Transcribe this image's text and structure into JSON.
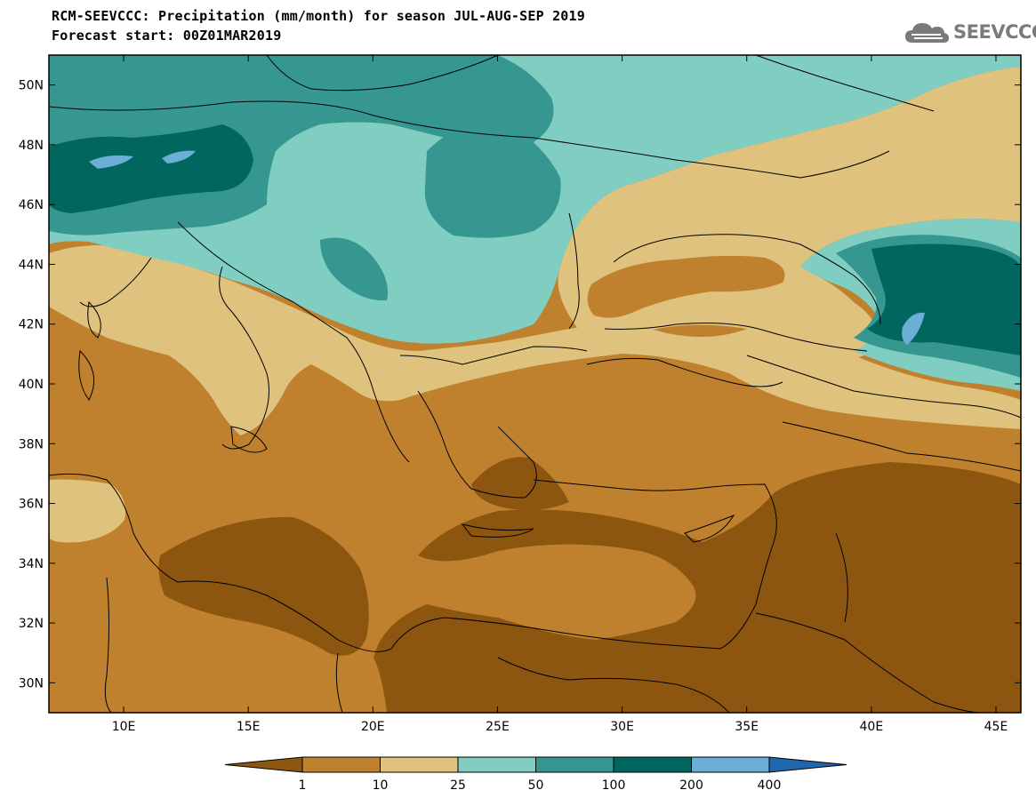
{
  "header": {
    "title_line1": "RCM-SEEVCCC: Precipitation (mm/month) for season JUL-AUG-SEP 2019",
    "title_line2": "Forecast start: 00Z01MAR2019",
    "logo_text": "SEEVCCC"
  },
  "map": {
    "projection": "lat-lon",
    "lon_range": [
      7,
      46
    ],
    "lat_range": [
      29,
      51
    ],
    "lon_ticks": [
      {
        "v": 10,
        "label": "10E"
      },
      {
        "v": 15,
        "label": "15E"
      },
      {
        "v": 20,
        "label": "20E"
      },
      {
        "v": 25,
        "label": "25E"
      },
      {
        "v": 30,
        "label": "30E"
      },
      {
        "v": 35,
        "label": "35E"
      },
      {
        "v": 40,
        "label": "40E"
      },
      {
        "v": 45,
        "label": "45E"
      }
    ],
    "lat_ticks": [
      {
        "v": 30,
        "label": "30N"
      },
      {
        "v": 32,
        "label": "32N"
      },
      {
        "v": 34,
        "label": "34N"
      },
      {
        "v": 36,
        "label": "36N"
      },
      {
        "v": 38,
        "label": "38N"
      },
      {
        "v": 40,
        "label": "40N"
      },
      {
        "v": 42,
        "label": "42N"
      },
      {
        "v": 44,
        "label": "44N"
      },
      {
        "v": 46,
        "label": "46N"
      },
      {
        "v": 48,
        "label": "48N"
      },
      {
        "v": 50,
        "label": "50N"
      }
    ]
  },
  "colorbar": {
    "bins": [
      {
        "color": "#8c5510"
      },
      {
        "color": "#bf812d"
      },
      {
        "color": "#dfc27d"
      },
      {
        "color": "#80cdc1"
      },
      {
        "color": "#35978f"
      },
      {
        "color": "#01665e"
      },
      {
        "color": "#6baed6"
      },
      {
        "color": "#2166ac"
      }
    ],
    "labels": [
      "1",
      "10",
      "25",
      "50",
      "100",
      "200",
      "400"
    ]
  }
}
